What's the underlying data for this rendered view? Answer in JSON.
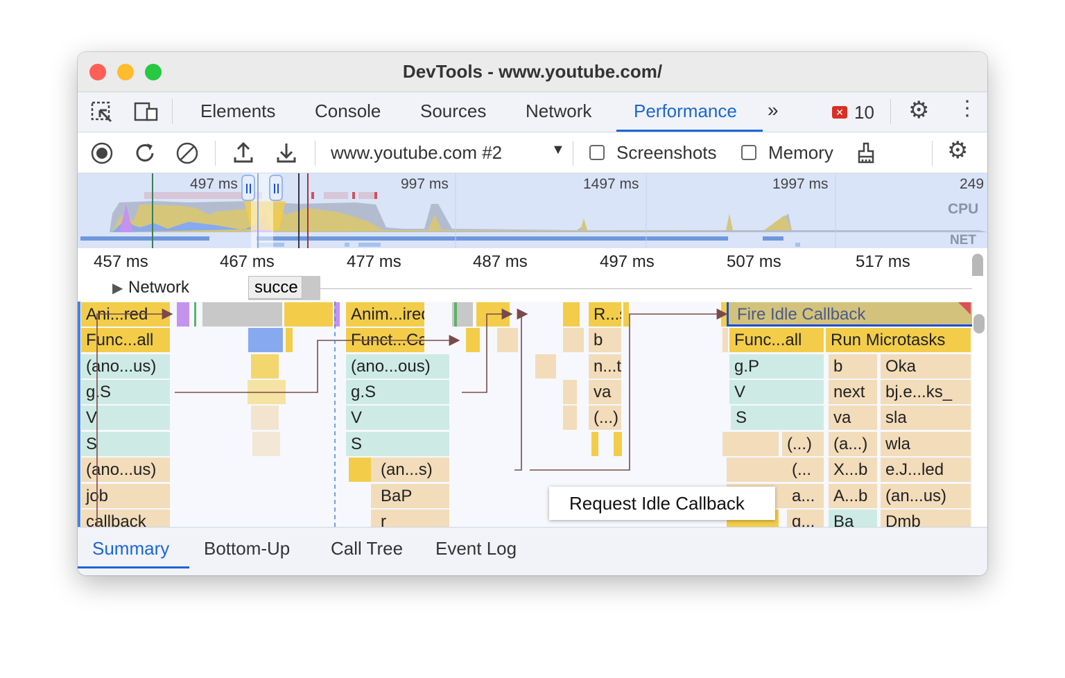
{
  "window": {
    "title": "DevTools - www.youtube.com/"
  },
  "tabs": {
    "items": [
      "Elements",
      "Console",
      "Sources",
      "Network",
      "Performance"
    ],
    "active": "Performance",
    "error_count": "10"
  },
  "toolbar": {
    "profile_select": "www.youtube.com #2",
    "screenshots_label": "Screenshots",
    "memory_label": "Memory",
    "screenshots_checked": false,
    "memory_checked": false
  },
  "overview": {
    "ticks": [
      "497 ms",
      "997 ms",
      "1497 ms",
      "1997 ms",
      "249"
    ],
    "cpu_label": "CPU",
    "net_label": "NET"
  },
  "ruler": {
    "ticks": [
      "457 ms",
      "467 ms",
      "477 ms",
      "487 ms",
      "497 ms",
      "507 ms",
      "517 ms"
    ]
  },
  "network": {
    "label": "Network",
    "request_label": "succe"
  },
  "flame": {
    "blocks": [
      "Ani...red",
      "Func...all",
      "(ano...us)",
      "g.S",
      "V",
      "S",
      "(ano...us)",
      "job",
      "callback",
      "Anim...ired",
      "Funct...Call",
      "(ano...ous)",
      "g.S",
      "V",
      "S",
      "(an...s)",
      "BaP",
      "r",
      "R...s",
      "b",
      "n...t",
      "va",
      "(...)",
      "Fire Idle Callback",
      "Func...all",
      "Run Microtasks",
      "g.P",
      "b",
      "Oka",
      "V",
      "next",
      "bj.e...ks_",
      "S",
      "va",
      "sla",
      "(...)",
      "(a...)",
      "wla",
      "(...",
      "X...b",
      "e.J...led",
      "a...",
      "A...b",
      "(an...us)",
      "g...",
      "Ba",
      "Dmb"
    ],
    "tooltip": "Request Idle Callback"
  },
  "bottom_tabs": {
    "items": [
      "Summary",
      "Bottom-Up",
      "Call Tree",
      "Event Log"
    ],
    "active": "Summary"
  },
  "colors": {
    "accent": "#1a66d6",
    "scripting": "#f3cd4a",
    "selected_border": "#1a4fd6"
  }
}
